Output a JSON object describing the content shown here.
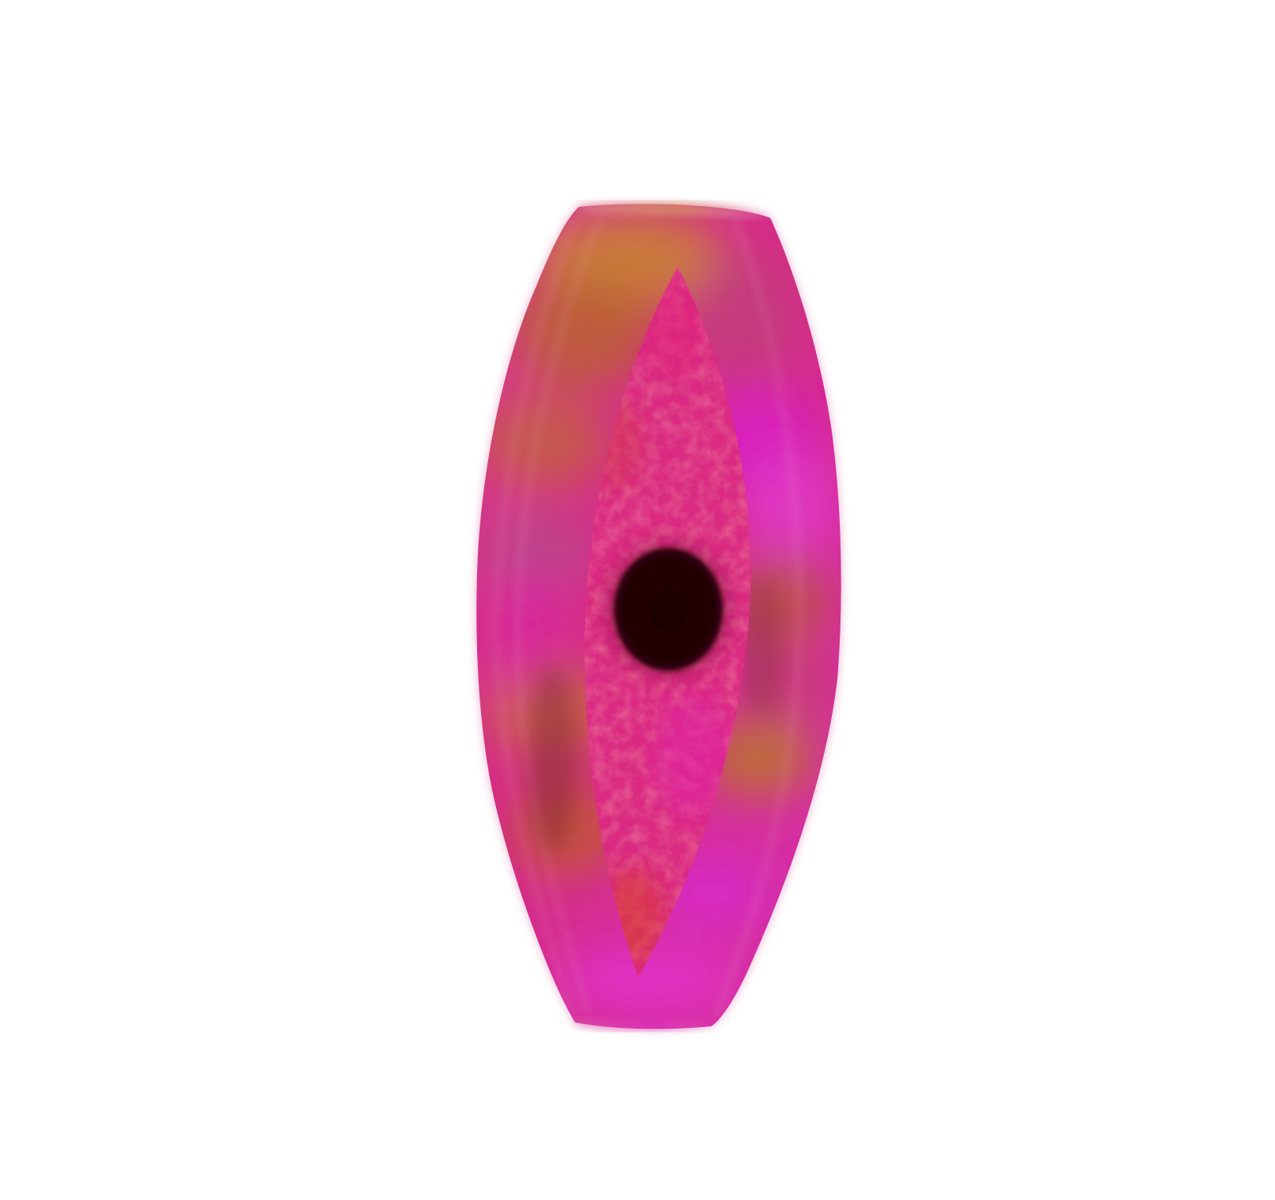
{
  "scene": {
    "subject": "bead",
    "background_color": "#ffffff",
    "palette": {
      "magenta": "#d81fb0",
      "hot_pink": "#e0248c",
      "rose": "#cf2f7a",
      "orange_brown": "#b8642a",
      "ochre": "#c8862e",
      "crimson": "#d12a55",
      "hole": "#210405"
    }
  }
}
